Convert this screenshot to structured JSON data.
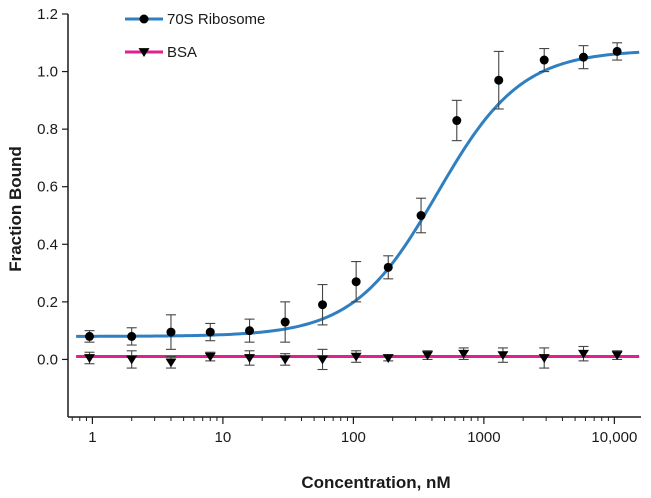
{
  "chart_data": {
    "type": "scatter",
    "xlabel": "Concentration, nM",
    "ylabel": "Fraction Bound",
    "x_scale": "log",
    "xlim": [
      0.65,
      16000
    ],
    "ylim": [
      -0.2,
      1.2
    ],
    "x_ticks": [
      1,
      10,
      100,
      1000,
      10000
    ],
    "x_tick_labels": [
      "1",
      "10",
      "100",
      "1000",
      "10,000"
    ],
    "y_ticks": [
      0.0,
      0.2,
      0.4,
      0.6,
      0.8,
      1.0,
      1.2
    ],
    "y_tick_labels": [
      "0.0",
      "0.2",
      "0.4",
      "0.6",
      "0.8",
      "1.0",
      "1.2"
    ],
    "grid": false,
    "legend_position": "top-left",
    "series": [
      {
        "name": "70S Ribosome",
        "line_color": "#2f7fc1",
        "marker": "circle",
        "marker_color": "#000000",
        "points": [
          {
            "x": 0.95,
            "y": 0.08,
            "err": 0.02
          },
          {
            "x": 2,
            "y": 0.08,
            "err": 0.03
          },
          {
            "x": 4,
            "y": 0.095,
            "err": 0.06
          },
          {
            "x": 8,
            "y": 0.095,
            "err": 0.03
          },
          {
            "x": 16,
            "y": 0.1,
            "err": 0.04
          },
          {
            "x": 30,
            "y": 0.13,
            "err": 0.07
          },
          {
            "x": 58,
            "y": 0.19,
            "err": 0.07
          },
          {
            "x": 105,
            "y": 0.27,
            "err": 0.07
          },
          {
            "x": 185,
            "y": 0.32,
            "err": 0.04
          },
          {
            "x": 330,
            "y": 0.5,
            "err": 0.06
          },
          {
            "x": 620,
            "y": 0.83,
            "err": 0.07
          },
          {
            "x": 1300,
            "y": 0.97,
            "err": 0.1
          },
          {
            "x": 2900,
            "y": 1.04,
            "err": 0.04
          },
          {
            "x": 5800,
            "y": 1.05,
            "err": 0.04
          },
          {
            "x": 10500,
            "y": 1.07,
            "err": 0.03
          }
        ],
        "fit": {
          "model": "hill",
          "bottom": 0.08,
          "top": 1.075,
          "kd": 440,
          "hill": 1.35
        }
      },
      {
        "name": "BSA",
        "line_color": "#e0208f",
        "marker": "triangle-down",
        "marker_color": "#000000",
        "points": [
          {
            "x": 0.95,
            "y": 0.005,
            "err": 0.02
          },
          {
            "x": 2,
            "y": 0.0,
            "err": 0.03
          },
          {
            "x": 4,
            "y": -0.01,
            "err": 0.02
          },
          {
            "x": 8,
            "y": 0.01,
            "err": 0.015
          },
          {
            "x": 16,
            "y": 0.005,
            "err": 0.025
          },
          {
            "x": 30,
            "y": 0.0,
            "err": 0.02
          },
          {
            "x": 58,
            "y": 0.0,
            "err": 0.035
          },
          {
            "x": 105,
            "y": 0.01,
            "err": 0.02
          },
          {
            "x": 185,
            "y": 0.005,
            "err": 0.01
          },
          {
            "x": 370,
            "y": 0.015,
            "err": 0.015
          },
          {
            "x": 700,
            "y": 0.02,
            "err": 0.02
          },
          {
            "x": 1400,
            "y": 0.015,
            "err": 0.025
          },
          {
            "x": 2900,
            "y": 0.005,
            "err": 0.035
          },
          {
            "x": 5800,
            "y": 0.02,
            "err": 0.025
          },
          {
            "x": 10500,
            "y": 0.015,
            "err": 0.015
          }
        ],
        "fit": {
          "model": "constant",
          "value": 0.01
        }
      }
    ]
  }
}
